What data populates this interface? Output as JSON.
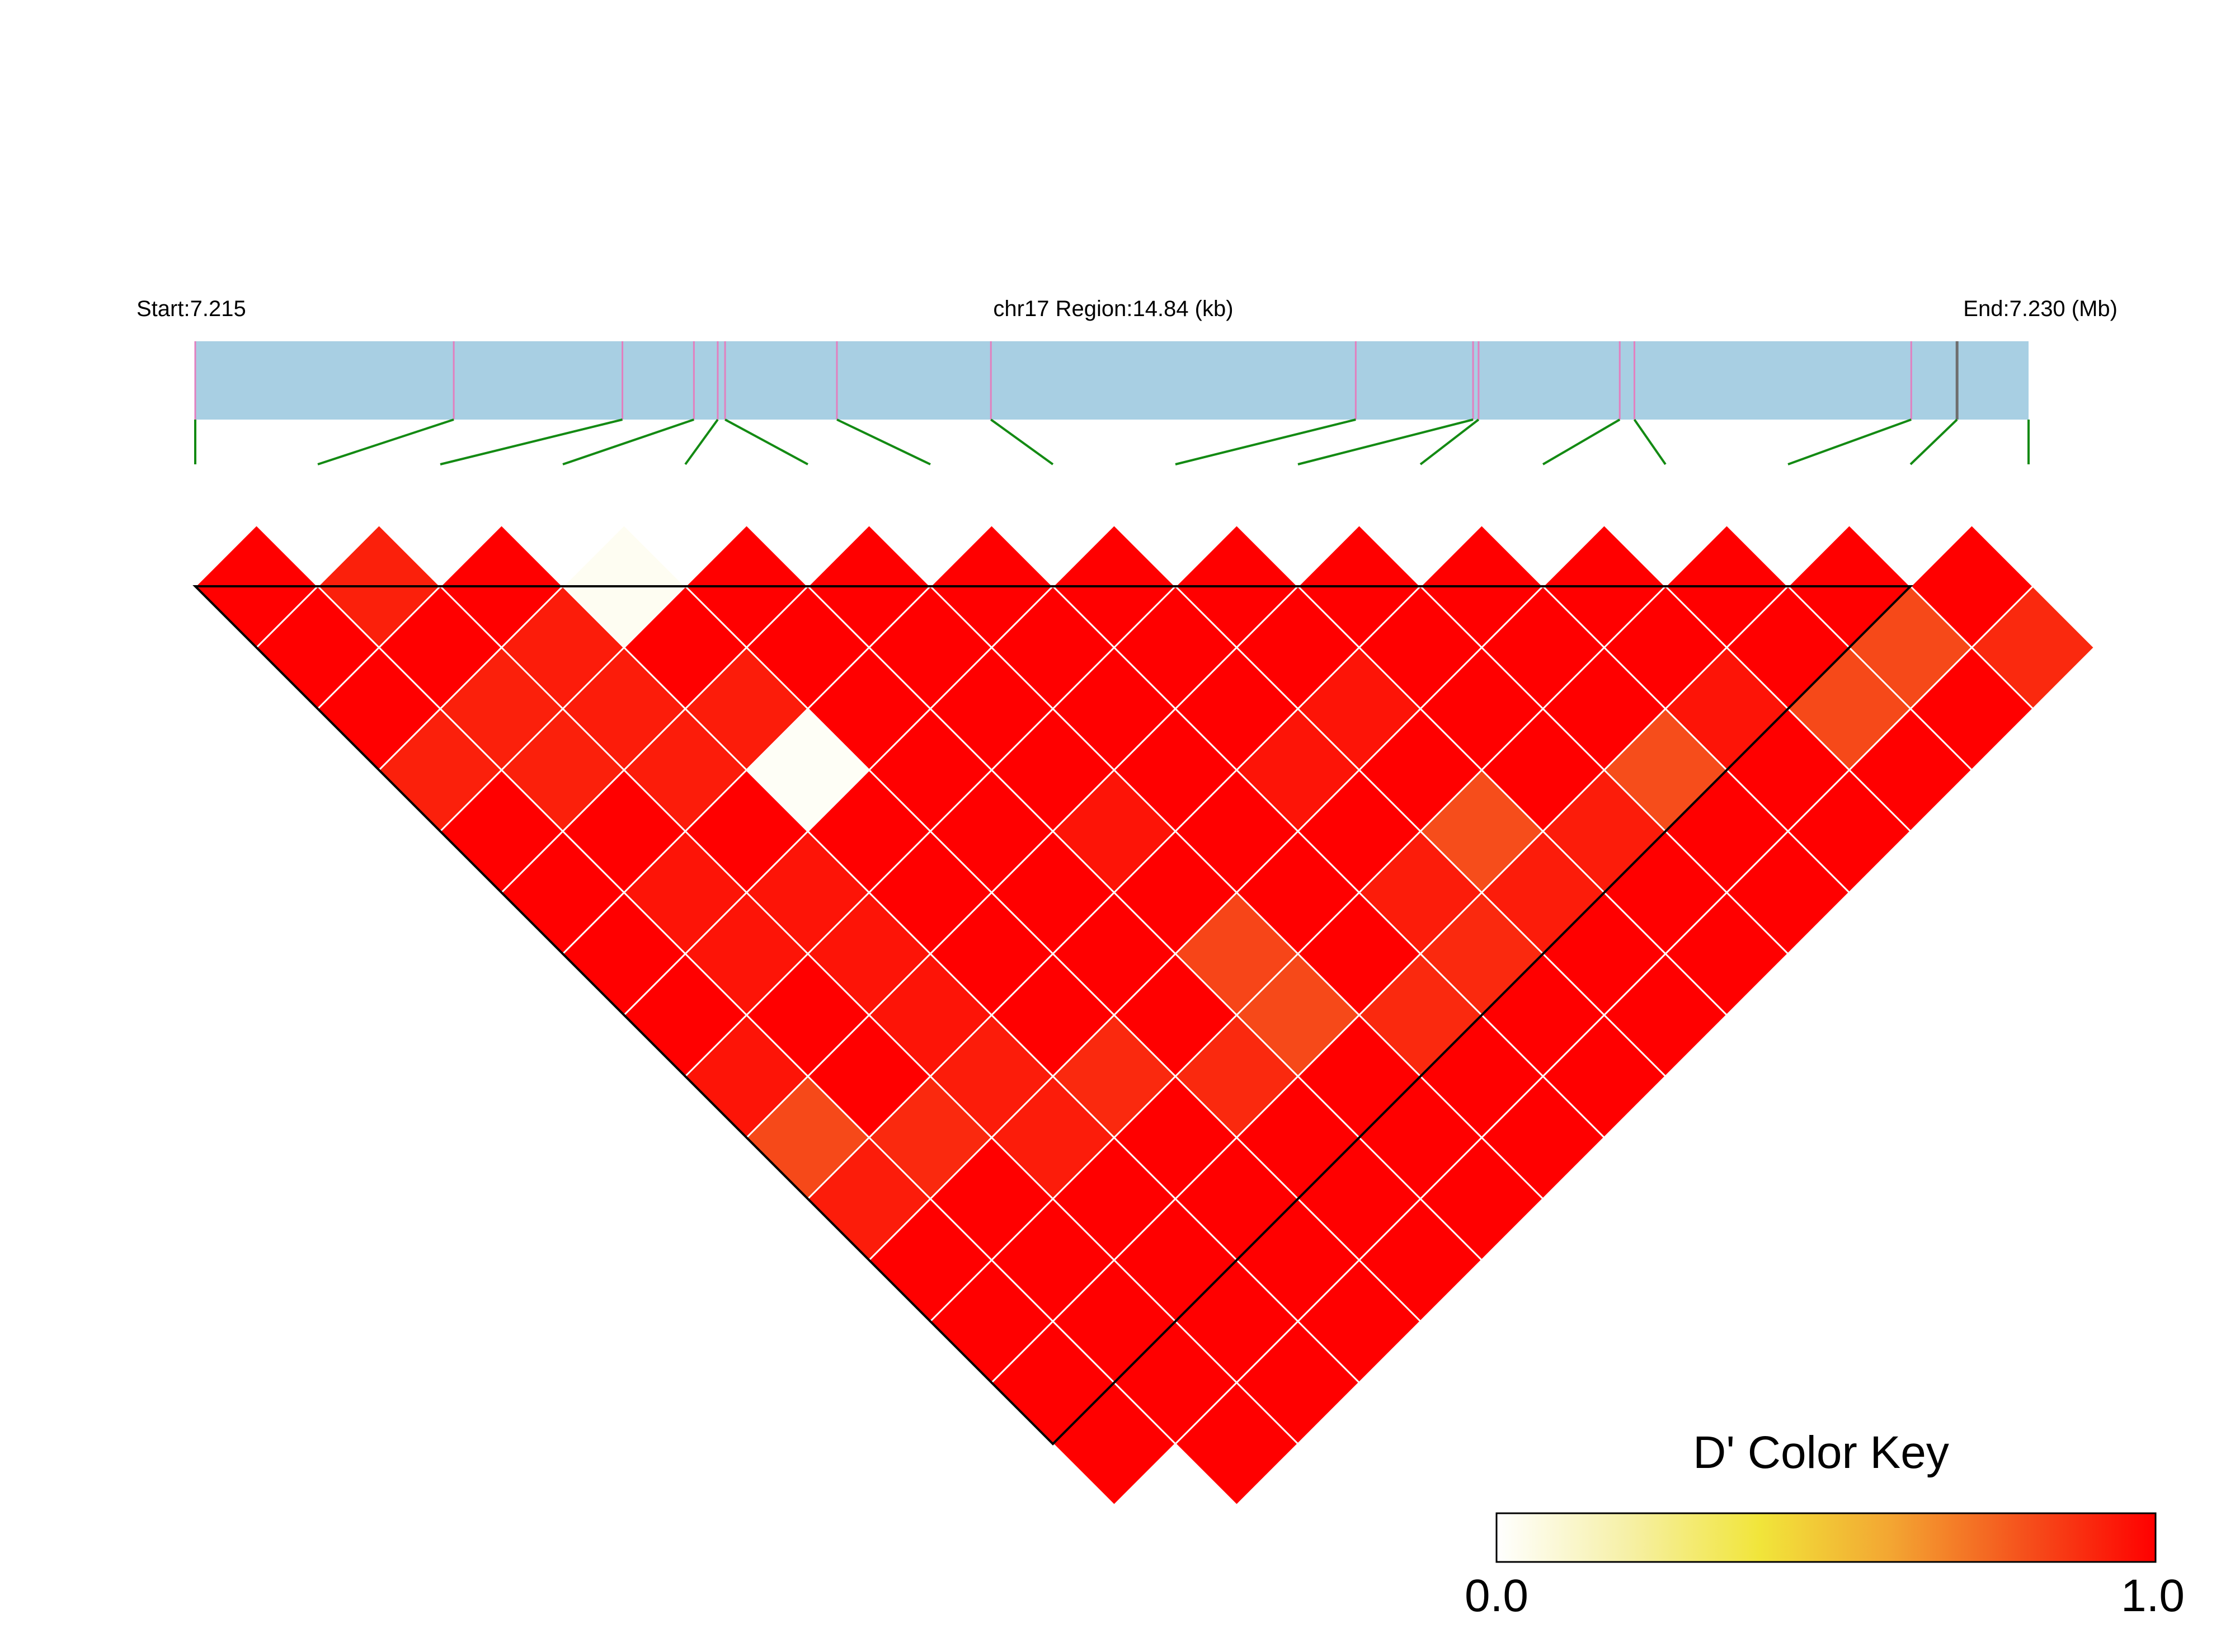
{
  "chart_data": {
    "type": "heatmap",
    "header": {
      "start_label": "Start:7.215",
      "region_label": "chr17 Region:14.84 (kb)",
      "end_label": "End:7.230 (Mb)"
    },
    "region": {
      "chromosome": "chr17",
      "start_mb": 7.215,
      "end_mb": 7.23,
      "length_kb": 14.84
    },
    "snp_positions_fraction": [
      0.0,
      0.141,
      0.233,
      0.272,
      0.285,
      0.289,
      0.35,
      0.434,
      0.633,
      0.697,
      0.7,
      0.777,
      0.785,
      0.936,
      0.961
    ],
    "marked_snp_index": 14,
    "track_colors": {
      "bar_fill": "#a8cfe3",
      "snp_line": "#e27fbf",
      "marked_snp_line": "#6e6e6e",
      "connector": "#138a13"
    },
    "ld_matrix": {
      "measure": "D'",
      "n_snps": 15,
      "values": [
        [
          1.0,
          0.92,
          1.0,
          0.03,
          1.0,
          1.0,
          1.0,
          1.0,
          1.0,
          1.0,
          1.0,
          1.0,
          1.0,
          1.0,
          1.0
        ],
        [
          1.0,
          1.0,
          0.93,
          1.0,
          1.0,
          1.0,
          1.0,
          1.0,
          1.0,
          1.0,
          1.0,
          1.0,
          1.0,
          0.82,
          0.9
        ],
        [
          1.0,
          0.92,
          0.93,
          0.93,
          1.0,
          1.0,
          1.0,
          1.0,
          0.95,
          1.0,
          1.0,
          0.95,
          0.82,
          1.0
        ],
        [
          0.92,
          0.92,
          0.93,
          0.02,
          1.0,
          1.0,
          1.0,
          0.95,
          1.0,
          1.0,
          0.81,
          1.0,
          1.0
        ],
        [
          1.0,
          1.0,
          1.0,
          1.0,
          1.0,
          0.95,
          1.0,
          1.0,
          0.81,
          0.93,
          1.0,
          1.0
        ],
        [
          1.0,
          0.95,
          0.95,
          1.0,
          1.0,
          1.0,
          1.0,
          0.93,
          0.93,
          1.0,
          1.0
        ],
        [
          1.0,
          0.95,
          0.95,
          1.0,
          1.0,
          0.83,
          1.0,
          0.9,
          1.0,
          1.0
        ],
        [
          1.0,
          1.0,
          0.95,
          1.0,
          1.0,
          0.82,
          0.9,
          1.0,
          1.0
        ],
        [
          0.95,
          1.0,
          0.93,
          0.9,
          0.9,
          1.0,
          1.0,
          1.0
        ],
        [
          0.82,
          0.9,
          0.93,
          1.0,
          1.0,
          1.0,
          1.0
        ],
        [
          0.93,
          1.0,
          1.0,
          1.0,
          1.0,
          1.0
        ],
        [
          1.0,
          1.0,
          1.0,
          1.0,
          1.0
        ],
        [
          1.0,
          1.0,
          1.0,
          1.0
        ],
        [
          1.0,
          1.0,
          1.0
        ],
        [
          1.0,
          1.0
        ]
      ]
    },
    "blocks": [
      {
        "first_snp": 0,
        "last_snp": 13
      }
    ],
    "color_key": {
      "title": "D' Color Key",
      "min_label": "0.0",
      "max_label": "1.0",
      "min": 0.0,
      "max": 1.0,
      "gradient": [
        "#ffffff",
        "#f6f0a6",
        "#f1e53a",
        "#f3a532",
        "#f5511c",
        "#ff0000"
      ]
    }
  }
}
